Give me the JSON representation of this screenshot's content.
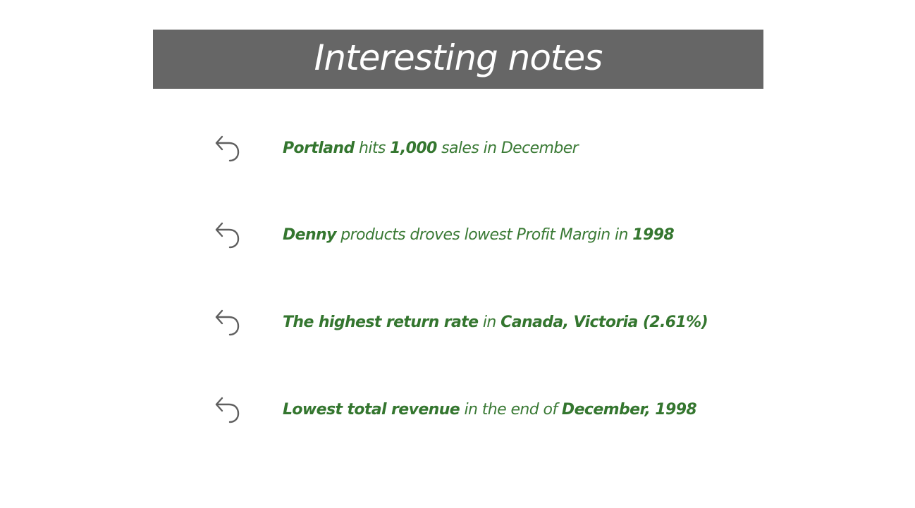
{
  "header": {
    "title": "Interesting notes"
  },
  "colors": {
    "title_bg": "#666666",
    "title_text": "#ffffff",
    "note_text": "#3a7a35",
    "icon": "#5f5f5f"
  },
  "notes": [
    {
      "icon": "return-arrow-icon",
      "parts": [
        {
          "text": "Portland",
          "bold": true
        },
        {
          "text": " hits ",
          "bold": false
        },
        {
          "text": "1,000",
          "bold": true
        },
        {
          "text": " sales in December",
          "bold": false
        }
      ]
    },
    {
      "icon": "return-arrow-icon",
      "parts": [
        {
          "text": "Denny",
          "bold": true
        },
        {
          "text": " products droves lowest Profit Margin in ",
          "bold": false
        },
        {
          "text": "1998",
          "bold": true
        }
      ]
    },
    {
      "icon": "return-arrow-icon",
      "parts": [
        {
          "text": "The highest return rate",
          "bold": true
        },
        {
          "text": " in ",
          "bold": false
        },
        {
          "text": "Canada, Victoria (2.61%)",
          "bold": true
        }
      ]
    },
    {
      "icon": "return-arrow-icon",
      "parts": [
        {
          "text": "Lowest total revenue",
          "bold": true
        },
        {
          "text": " in the end of ",
          "bold": false
        },
        {
          "text": "December, 1998",
          "bold": true
        }
      ]
    }
  ]
}
